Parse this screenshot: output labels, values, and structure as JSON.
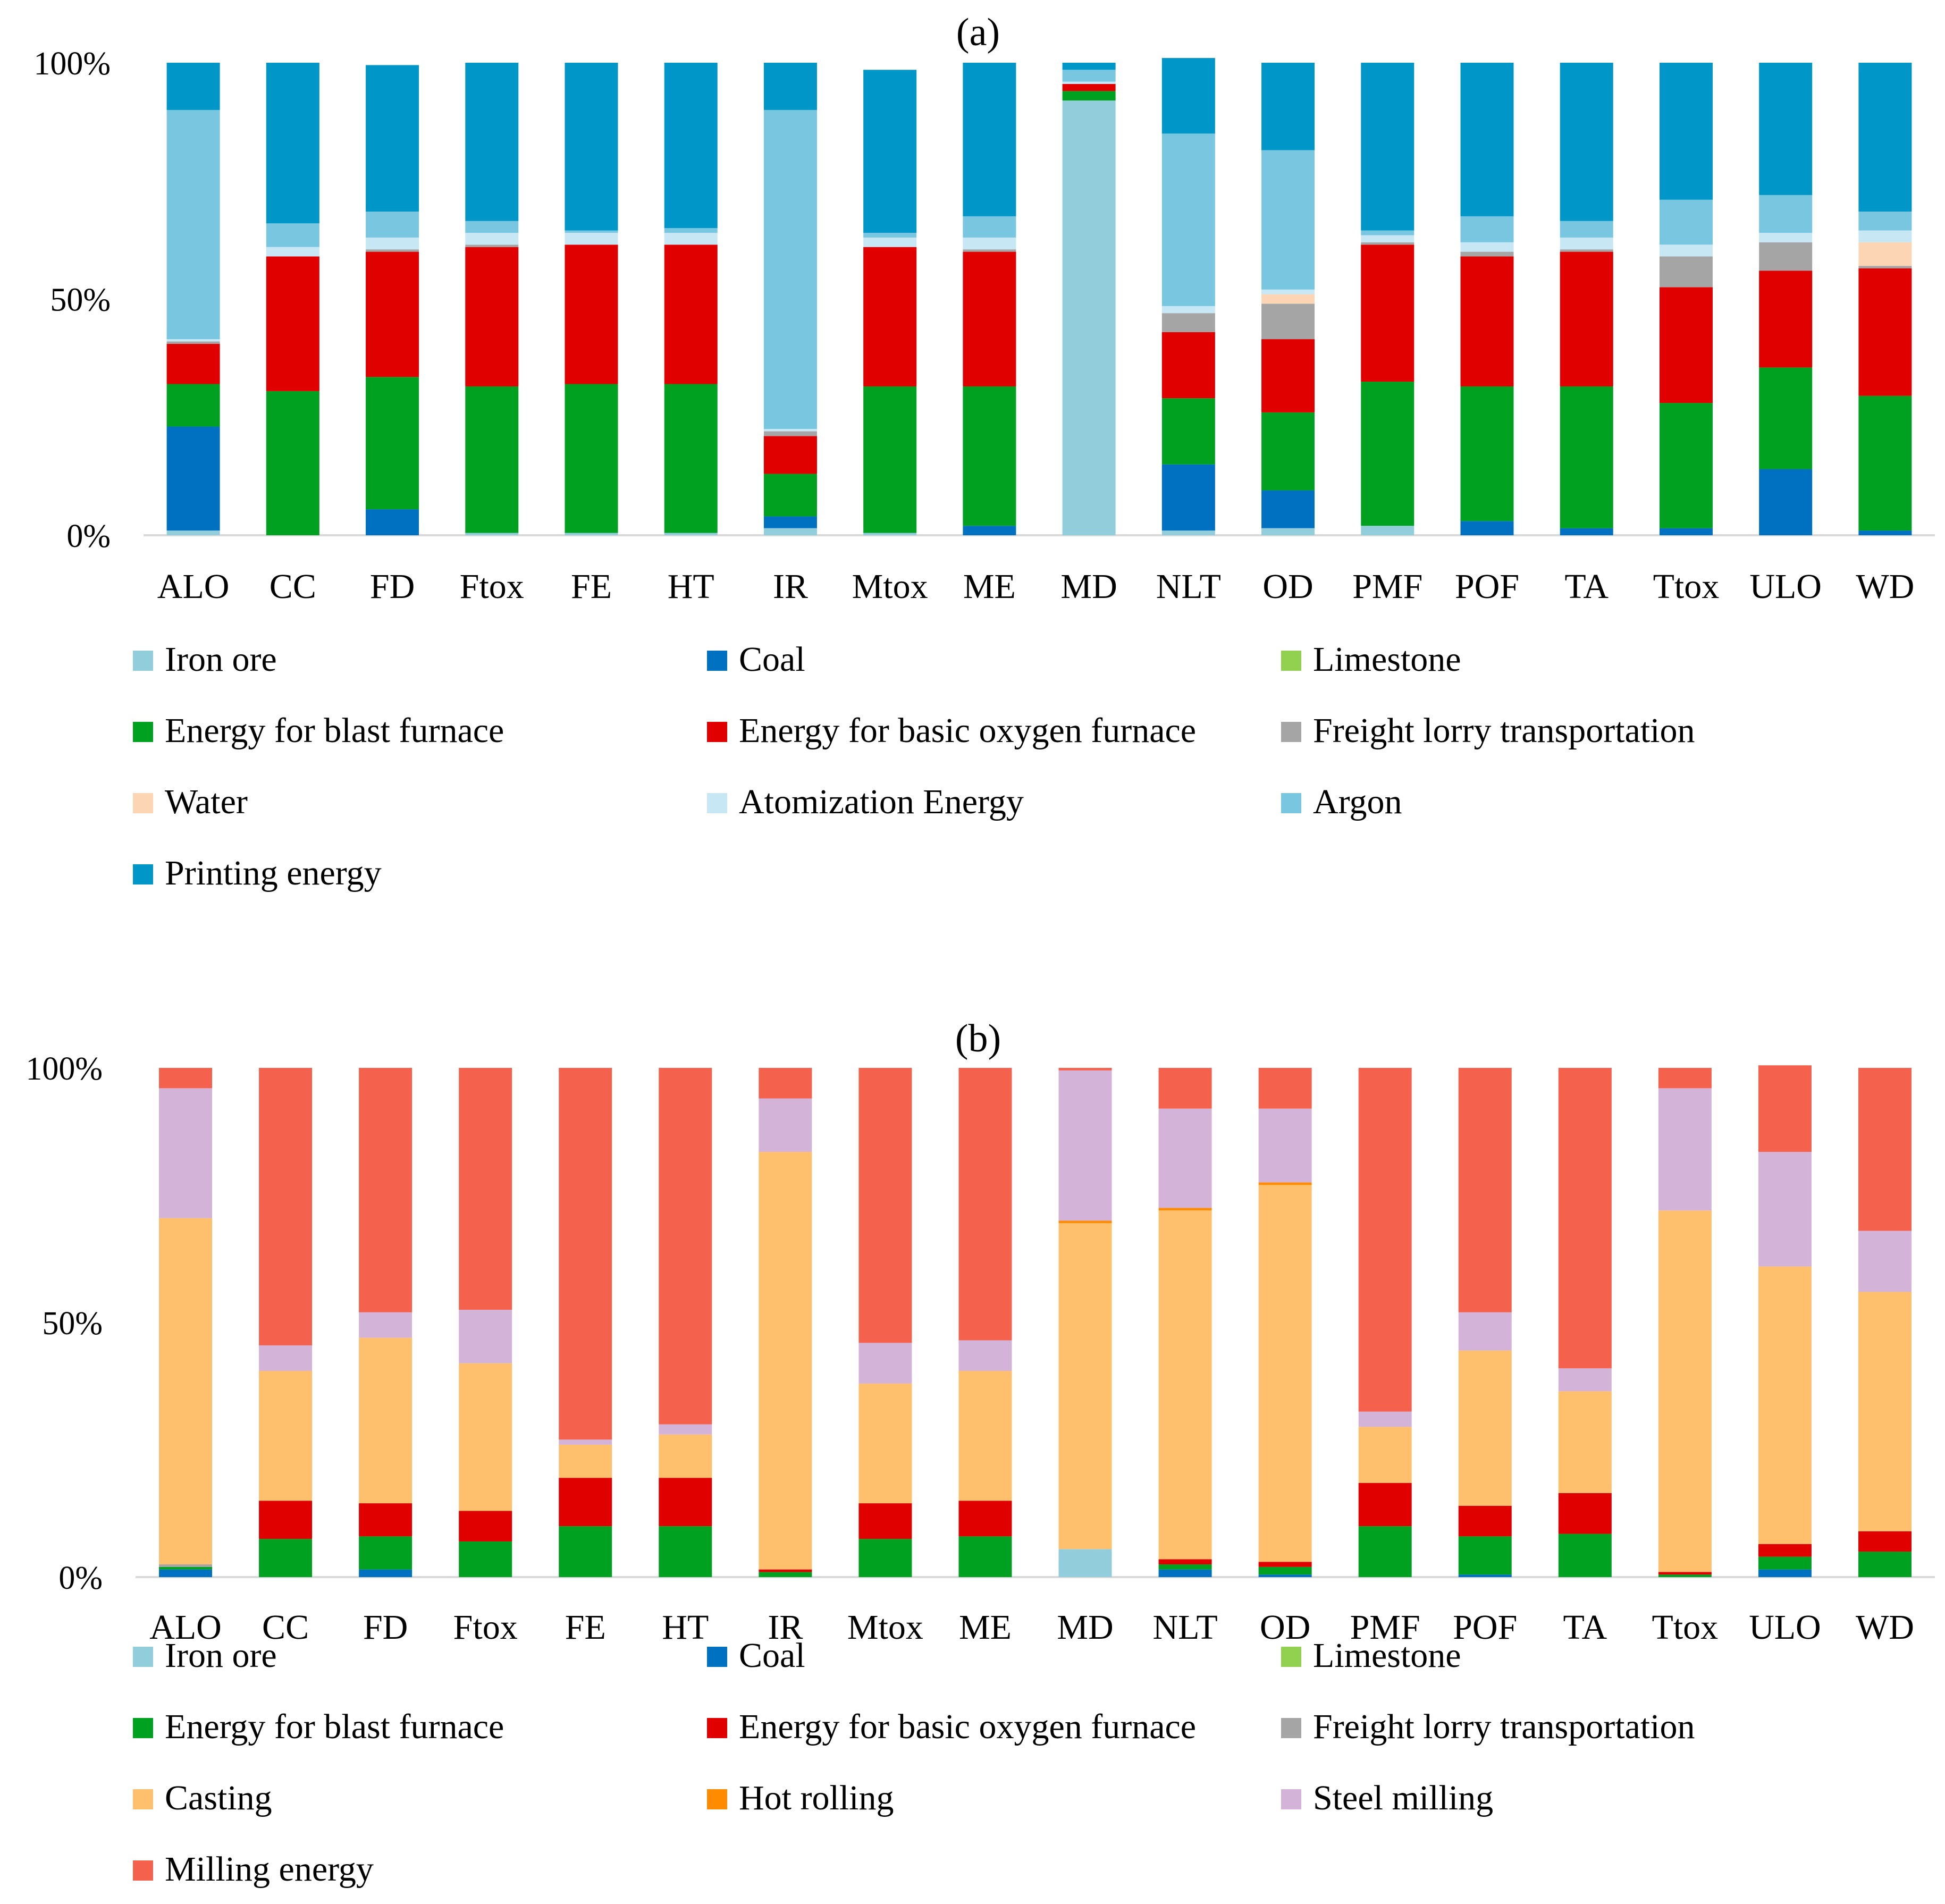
{
  "chart_data": [
    {
      "type": "bar",
      "stacked": true,
      "title": "(a)",
      "xlabel": "",
      "ylabel": "",
      "ylim": [
        0,
        100
      ],
      "yticks": [
        "0%",
        "50%",
        "100%"
      ],
      "categories": [
        "ALO",
        "CC",
        "FD",
        "Ftox",
        "FE",
        "HT",
        "IR",
        "Mtox",
        "ME",
        "MD",
        "NLT",
        "OD",
        "PMF",
        "POF",
        "TA",
        "Ttox",
        "ULO",
        "WD"
      ],
      "series": [
        {
          "name": "Iron ore",
          "color": "#92cddc",
          "values": [
            1,
            0,
            0,
            0.5,
            0.5,
            0.5,
            1.5,
            0.5,
            0,
            92,
            1,
            1.5,
            2,
            0,
            0,
            0,
            0,
            0
          ]
        },
        {
          "name": "Coal",
          "color": "#0070c0",
          "values": [
            22,
            0,
            5.5,
            0,
            0,
            0,
            2.5,
            0,
            2,
            0,
            14,
            8,
            0,
            3,
            1.5,
            1.5,
            14,
            1
          ]
        },
        {
          "name": "Limestone",
          "color": "#92d050",
          "values": [
            0,
            0,
            0,
            0,
            0,
            0,
            0,
            0,
            0,
            0,
            0,
            0,
            0,
            0,
            0,
            0,
            0,
            0
          ]
        },
        {
          "name": "Energy for blast furnace",
          "color": "#00a020",
          "values": [
            9,
            30.5,
            28,
            31,
            31.5,
            31.5,
            9,
            31,
            29.5,
            2,
            14,
            16.5,
            30.5,
            28.5,
            30,
            26.5,
            21.5,
            28.5
          ]
        },
        {
          "name": "Energy for basic oxygen furnace",
          "color": "#e00000",
          "values": [
            8.5,
            28.5,
            26.5,
            29.5,
            29.5,
            29.5,
            8,
            29.5,
            28.5,
            1.5,
            14,
            15.5,
            29,
            27.5,
            28.5,
            24.5,
            20.5,
            27
          ]
        },
        {
          "name": "Freight lorry transportation",
          "color": "#a5a5a5",
          "values": [
            0.5,
            0,
            0.5,
            0.5,
            0,
            0,
            1,
            0,
            0.5,
            0,
            4,
            7.5,
            0.5,
            1,
            0.5,
            6.5,
            6,
            0.5
          ]
        },
        {
          "name": "Water",
          "color": "#fcd5b5",
          "values": [
            0,
            0,
            0,
            0,
            0,
            0,
            0,
            0,
            0,
            0,
            0,
            2,
            0,
            0,
            0,
            0,
            0,
            5
          ]
        },
        {
          "name": "Atomization Energy",
          "color": "#c6e7f3",
          "values": [
            0.5,
            2,
            2.5,
            2.5,
            2.5,
            2.5,
            0.5,
            2,
            2.5,
            0.5,
            1.5,
            1,
            1.5,
            2,
            2.5,
            2.5,
            2,
            2.5
          ]
        },
        {
          "name": "Argon",
          "color": "#78c6e0",
          "values": [
            48.5,
            5,
            5.5,
            2.5,
            0.5,
            1,
            67.5,
            1,
            4.5,
            2.5,
            36.5,
            29.5,
            1,
            5.5,
            3.5,
            9.5,
            8,
            4
          ]
        },
        {
          "name": "Printing energy",
          "color": "#0096c8",
          "values": [
            10,
            34,
            31,
            33.5,
            35.5,
            35,
            10,
            34.5,
            32.5,
            1.5,
            16,
            18.5,
            35.5,
            32.5,
            33.5,
            29,
            28,
            31.5
          ]
        }
      ]
    },
    {
      "type": "bar",
      "stacked": true,
      "title": "(b)",
      "xlabel": "",
      "ylabel": "",
      "ylim": [
        0,
        100
      ],
      "yticks": [
        "0%",
        "50%",
        "100%"
      ],
      "categories": [
        "ALO",
        "CC",
        "FD",
        "Ftox",
        "FE",
        "HT",
        "IR",
        "Mtox",
        "ME",
        "MD",
        "NLT",
        "OD",
        "PMF",
        "POF",
        "TA",
        "Ttox",
        "ULO",
        "WD"
      ],
      "series": [
        {
          "name": "Iron ore",
          "color": "#92cddc",
          "values": [
            0,
            0,
            0,
            0,
            0,
            0,
            0,
            0,
            0,
            5.5,
            0,
            0,
            0,
            0,
            0,
            0,
            0,
            0
          ]
        },
        {
          "name": "Coal",
          "color": "#0070c0",
          "values": [
            1.5,
            0,
            1.5,
            0,
            0,
            0,
            0,
            0,
            0,
            0,
            1.5,
            0.5,
            0,
            0.5,
            0,
            0,
            1.5,
            0
          ]
        },
        {
          "name": "Limestone",
          "color": "#92d050",
          "values": [
            0,
            0,
            0,
            0,
            0,
            0,
            0,
            0,
            0,
            0,
            0,
            0,
            0,
            0,
            0,
            0,
            0,
            0
          ]
        },
        {
          "name": "Energy for blast furnace",
          "color": "#00a020",
          "values": [
            0.5,
            7.5,
            6.5,
            7,
            10,
            10,
            1,
            7.5,
            8,
            0,
            1,
            1.5,
            10,
            7.5,
            8.5,
            0.5,
            2.5,
            5
          ]
        },
        {
          "name": "Energy for basic oxygen furnace",
          "color": "#e00000",
          "values": [
            0,
            7.5,
            6.5,
            6,
            9.5,
            9.5,
            0.5,
            7,
            7,
            0,
            1,
            1,
            8.5,
            6,
            8,
            0.5,
            2.5,
            4
          ]
        },
        {
          "name": "Freight lorry transportation",
          "color": "#a5a5a5",
          "values": [
            0.5,
            0,
            0,
            0,
            0,
            0,
            0,
            0,
            0,
            0,
            0,
            0,
            0,
            0,
            0,
            0,
            0,
            0
          ]
        },
        {
          "name": "Casting",
          "color": "#ffc06e",
          "values": [
            68,
            25.5,
            32.5,
            29,
            6.5,
            8.5,
            82,
            23.5,
            25.5,
            64,
            68.5,
            74,
            11,
            30.5,
            20,
            71,
            54.5,
            47
          ]
        },
        {
          "name": "Hot rolling",
          "color": "#ff8c00",
          "values": [
            0,
            0,
            0,
            0,
            0,
            0,
            0,
            0,
            0,
            0.5,
            0.5,
            0.5,
            0,
            0,
            0,
            0,
            0,
            0
          ]
        },
        {
          "name": "Steel milling",
          "color": "#d4b3d9",
          "values": [
            25.5,
            5,
            5,
            10.5,
            1,
            2,
            10.5,
            8,
            6,
            29.5,
            19.5,
            14.5,
            3,
            7.5,
            4.5,
            24,
            22.5,
            12
          ]
        },
        {
          "name": "Milling energy",
          "color": "#f4614d",
          "values": [
            4,
            54.5,
            48,
            47.5,
            73,
            70,
            6,
            54,
            53.5,
            0.5,
            8,
            8,
            67.5,
            48,
            59,
            4,
            17,
            32
          ]
        }
      ]
    }
  ]
}
